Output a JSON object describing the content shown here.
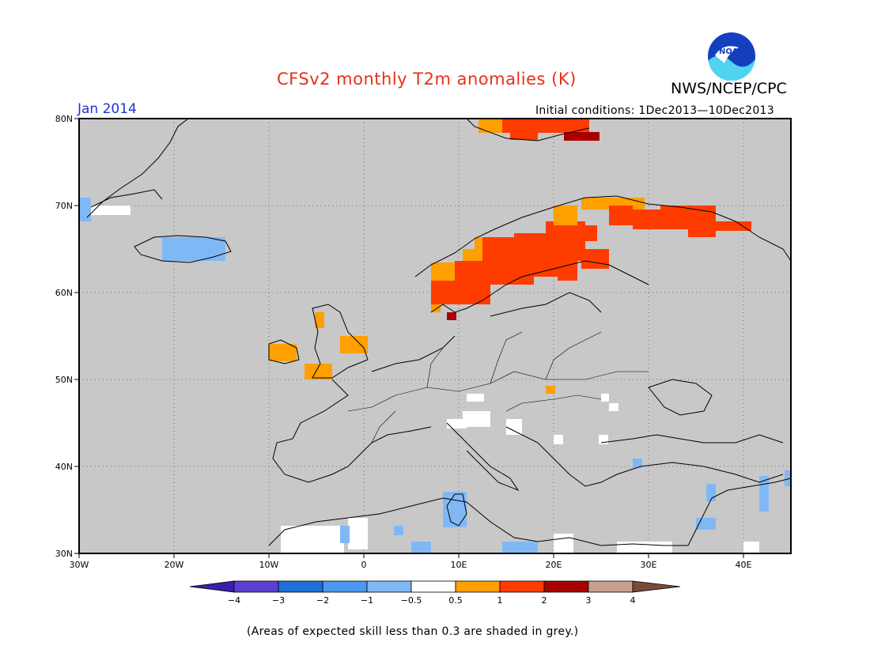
{
  "title": "CFSv2 monthly T2m anomalies (K)",
  "organization": "NWS/NCEP/CPC",
  "logo_text": "NOAA",
  "forecast_month": "Jan 2014",
  "initial_conditions": "Initial conditions: 1Dec2013—10Dec2013",
  "footnote": "(Areas of expected skill less than 0.3 are shaded in grey.)",
  "map": {
    "lon_range": [
      -30,
      45
    ],
    "lat_range": [
      30,
      80
    ],
    "lon_ticks": [
      "30W",
      "20W",
      "10W",
      "0",
      "10E",
      "20E",
      "30E",
      "40E"
    ],
    "lat_ticks": [
      "80N",
      "70N",
      "60N",
      "50N",
      "40N",
      "30N"
    ],
    "grid": "dotted",
    "background_color": "#c8c8c8"
  },
  "colorbar": {
    "labels": [
      "−4",
      "−3",
      "−2",
      "−1",
      "−0.5",
      "0.5",
      "1",
      "2",
      "3",
      "4"
    ],
    "colors": [
      "#3a1fa8",
      "#5a3fd0",
      "#1f6fd8",
      "#4a98f0",
      "#80b8f5",
      "#ffffff",
      "#ff9f00",
      "#ff3c00",
      "#a80000",
      "#c9a090",
      "#7a4a38"
    ]
  }
}
